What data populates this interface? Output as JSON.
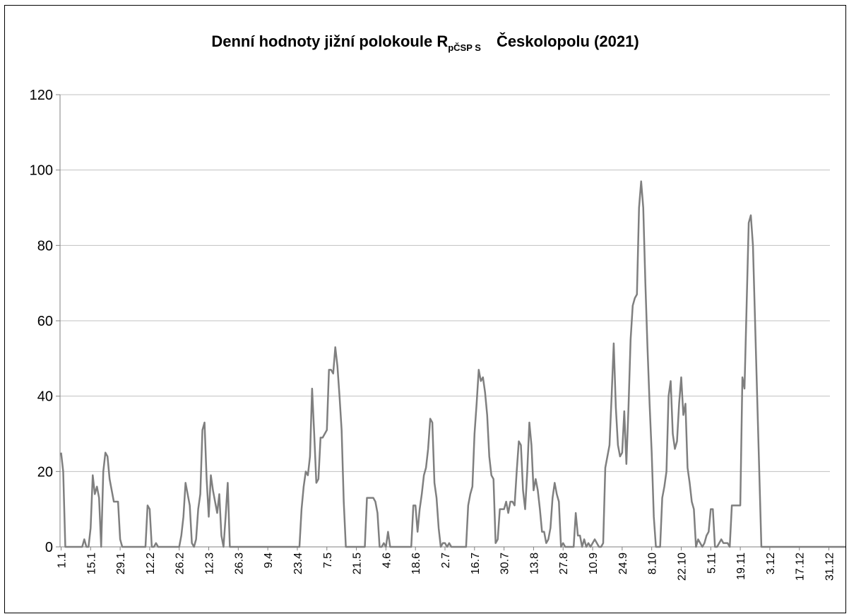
{
  "chart_data": {
    "type": "line",
    "title": {
      "prefix": "Denní hodnoty jižní polokoule R",
      "subscript": "pČSP S",
      "suffix": "Českolopolu (2021)"
    },
    "xlabel": "",
    "ylabel": "",
    "ylim": [
      0,
      120
    ],
    "yticks": [
      0,
      20,
      40,
      60,
      80,
      100,
      120
    ],
    "grid": "horizontal",
    "legend": "none",
    "line_color": "#7f7f7f",
    "x_tick_labels": [
      "1.1",
      "15.1",
      "29.1",
      "12.2",
      "26.2",
      "12.3",
      "26.3",
      "9.4",
      "23.4",
      "7.5",
      "21.5",
      "4.6",
      "18.6",
      "2.7",
      "16.7",
      "30.7",
      "13.8",
      "27.8",
      "10.9",
      "24.9",
      "8.10",
      "22.10",
      "5.11",
      "19.11",
      "3.12",
      "17.12",
      "31.12"
    ],
    "x_days": 365,
    "series": [
      {
        "values": [
          25,
          20,
          0,
          0,
          0,
          0,
          0,
          0,
          0,
          0,
          0,
          2,
          0,
          0,
          5,
          19,
          14,
          16,
          13,
          0,
          20,
          25,
          24,
          18,
          15,
          12,
          12,
          12,
          2,
          0,
          0,
          0,
          0,
          0,
          0,
          0,
          0,
          0,
          0,
          0,
          0,
          11,
          10,
          0,
          0,
          1,
          0,
          0,
          0,
          0,
          0,
          0,
          0,
          0,
          0,
          0,
          0,
          3,
          8,
          17,
          14,
          11,
          1,
          0,
          2,
          10,
          14,
          31,
          33,
          18,
          8,
          19,
          15,
          12,
          9,
          14,
          3,
          0,
          8,
          17,
          0,
          0,
          0,
          0,
          0,
          0,
          0,
          0,
          0,
          0,
          0,
          0,
          0,
          0,
          0,
          0,
          0,
          0,
          0,
          0,
          0,
          0,
          0,
          0,
          0,
          0,
          0,
          0,
          0,
          0,
          0,
          0,
          0,
          0,
          10,
          16,
          20,
          19,
          24,
          42,
          30,
          17,
          18,
          29,
          29,
          30,
          31,
          47,
          47,
          46,
          53,
          48,
          40,
          31,
          12,
          0,
          0,
          0,
          0,
          0,
          0,
          0,
          0,
          0,
          0,
          13,
          13,
          13,
          13,
          12,
          9,
          0,
          0,
          1,
          0,
          4,
          0,
          0,
          0,
          0,
          0,
          0,
          0,
          0,
          0,
          0,
          0,
          11,
          11,
          4,
          10,
          14,
          19,
          21,
          26,
          34,
          33,
          17,
          13,
          5,
          0,
          1,
          1,
          0,
          1,
          0,
          0,
          0,
          0,
          0,
          0,
          0,
          0,
          11,
          14,
          16,
          30,
          38,
          47,
          44,
          45,
          41,
          35,
          24,
          19,
          18,
          1,
          2,
          10,
          10,
          10,
          12,
          9,
          12,
          12,
          11,
          20,
          28,
          27,
          15,
          10,
          20,
          33,
          27,
          15,
          18,
          15,
          10,
          4,
          4,
          1,
          2,
          5,
          13,
          17,
          14,
          12,
          0,
          1,
          0,
          0,
          0,
          0,
          0,
          9,
          3,
          3,
          0,
          2,
          0,
          1,
          0,
          1,
          2,
          1,
          0,
          0,
          1,
          21,
          24,
          27,
          40,
          54,
          37,
          27,
          24,
          25,
          36,
          22,
          37,
          55,
          64,
          66,
          67,
          90,
          97,
          90,
          70,
          53,
          38,
          25,
          8,
          0,
          0,
          0,
          13,
          16,
          20,
          40,
          44,
          30,
          26,
          28,
          38,
          45,
          35,
          38,
          21,
          17,
          12,
          10,
          0,
          2,
          1,
          0,
          1,
          3,
          4,
          10,
          10,
          0,
          0,
          1,
          2,
          1,
          1,
          1,
          0,
          11,
          11,
          11,
          11,
          11,
          45,
          42,
          64,
          86,
          88,
          80,
          60,
          40,
          20,
          0,
          0,
          0,
          0,
          0,
          0,
          0,
          0,
          0,
          0,
          0,
          0,
          0,
          0,
          0,
          0,
          0,
          0,
          0,
          0,
          0,
          0,
          0,
          0,
          0,
          0,
          0,
          0,
          0,
          0,
          0,
          0,
          0,
          0,
          0,
          0,
          0,
          0,
          0,
          0,
          0,
          0,
          0,
          0,
          0,
          0,
          0,
          0,
          0,
          0,
          0,
          0,
          0,
          0,
          0,
          0,
          0,
          0,
          0,
          0,
          0,
          0,
          0
        ]
      }
    ]
  }
}
